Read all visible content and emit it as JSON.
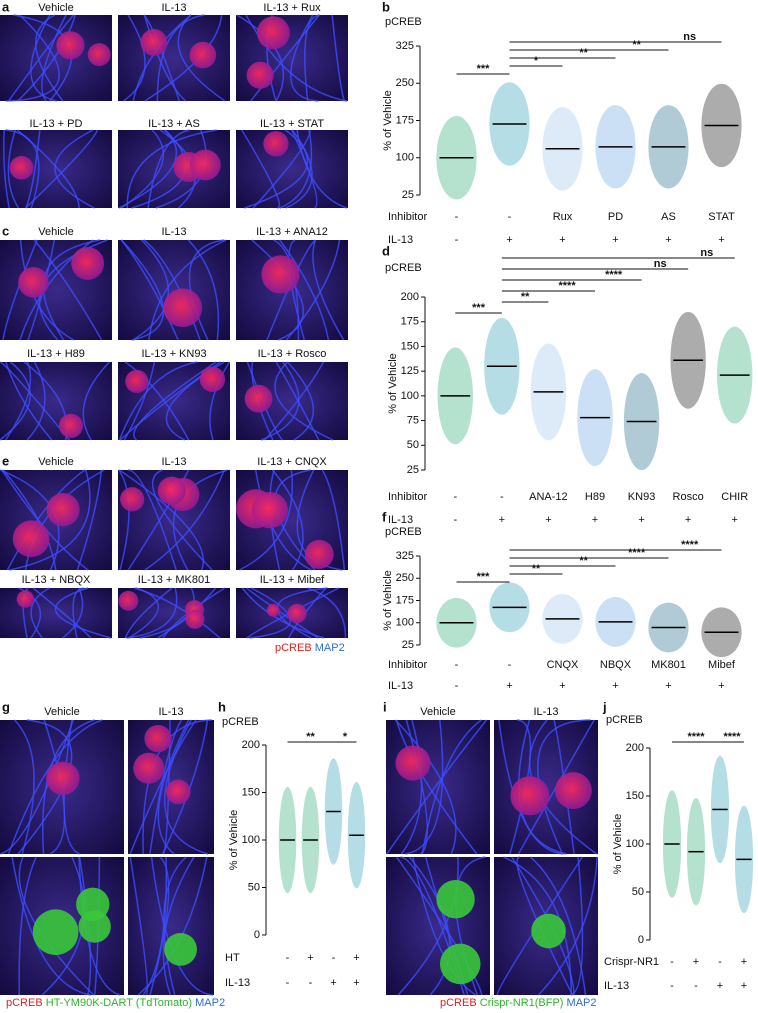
{
  "figure": {
    "panels": [
      {
        "label": "a",
        "images": [
          "Vehicle",
          "IL-13",
          "IL-13 + Rux",
          "IL-13 + PD",
          "IL-13 + AS",
          "IL-13 + STAT"
        ]
      },
      {
        "label": "c",
        "images": [
          "Vehicle",
          "IL-13",
          "IL-13 + ANA12",
          "IL-13 + H89",
          "IL-13 + KN93",
          "IL-13 + Rosco"
        ]
      },
      {
        "label": "e",
        "images": [
          "Vehicle",
          "IL-13",
          "IL-13 + CNQX",
          "IL-13 + NBQX",
          "IL-13 + MK801",
          "IL-13 + Mibef"
        ],
        "stain_legend": [
          "pCREB",
          "MAP2"
        ],
        "stain_colors": [
          "#e0201c",
          "#2a6fd0"
        ]
      },
      {
        "label": "g",
        "images": [
          "Vehicle",
          "IL-13"
        ],
        "stain_legend": [
          "pCREB",
          "HT-YM90K-DART (TdTomato)",
          "MAP2"
        ],
        "stain_colors": [
          "#e0201c",
          "#2bb52b",
          "#2a6fd0"
        ]
      },
      {
        "label": "i",
        "images": [
          "Vehicle",
          "IL-13"
        ],
        "stain_legend": [
          "pCREB",
          "Crispr-NR1(BFP)",
          "MAP2"
        ],
        "stain_colors": [
          "#e0201c",
          "#2bb52b",
          "#2a6fd0"
        ]
      }
    ]
  },
  "chart_data": [
    {
      "type": "strip",
      "label": "b",
      "title": "pCREB",
      "y_label": "% of Vehicle",
      "ylim": [
        25,
        325
      ],
      "yticks": [
        25,
        100,
        175,
        250,
        325
      ],
      "values": [
        100,
        168,
        118,
        122,
        122,
        165
      ],
      "colors": [
        "#2aa876",
        "#2a9fb5",
        "#9ec5ee",
        "#6aa6e0",
        "#1f6a8a",
        "#111111"
      ],
      "rows": [
        {
          "name": "Inhibitor",
          "labels": [
            "-",
            "-",
            "Rux",
            "PD",
            "AS",
            "STAT"
          ]
        },
        {
          "name": "IL-13",
          "labels": [
            "-",
            "+",
            "+",
            "+",
            "+",
            "+"
          ]
        }
      ],
      "significance": [
        {
          "groups": [
            0,
            1
          ],
          "label": "***"
        },
        {
          "groups": [
            1,
            2
          ],
          "label": "*"
        },
        {
          "groups": [
            1,
            3
          ],
          "label": "**"
        },
        {
          "groups": [
            1,
            4
          ],
          "label": "**"
        },
        {
          "groups": [
            1,
            5
          ],
          "label": "ns"
        }
      ]
    },
    {
      "type": "strip",
      "label": "d",
      "title": "pCREB",
      "y_label": "% of Vehicle",
      "ylim": [
        25,
        200
      ],
      "yticks": [
        25,
        50,
        75,
        100,
        125,
        150,
        175,
        200
      ],
      "values": [
        100,
        130,
        104,
        78,
        74,
        136,
        121
      ],
      "colors": [
        "#2aa876",
        "#2a9fb5",
        "#9ec5ee",
        "#6aa6e0",
        "#1f6a8a",
        "#111111",
        "#2aa876"
      ],
      "rows": [
        {
          "name": "Inhibitor",
          "labels": [
            "-",
            "-",
            "ANA-12",
            "H89",
            "KN93",
            "Rosco",
            "CHIR"
          ]
        },
        {
          "name": "IL-13",
          "labels": [
            "-",
            "+",
            "+",
            "+",
            "+",
            "+",
            "+"
          ]
        }
      ],
      "significance": [
        {
          "groups": [
            0,
            1
          ],
          "label": "***"
        },
        {
          "groups": [
            1,
            2
          ],
          "label": "**"
        },
        {
          "groups": [
            1,
            3
          ],
          "label": "****"
        },
        {
          "groups": [
            1,
            4
          ],
          "label": "****"
        },
        {
          "groups": [
            1,
            5
          ],
          "label": "ns"
        },
        {
          "groups": [
            1,
            6
          ],
          "label": "ns"
        }
      ]
    },
    {
      "type": "strip",
      "label": "f",
      "title": "pCREB",
      "y_label": "% of Vehicle",
      "ylim": [
        25,
        325
      ],
      "yticks": [
        25,
        100,
        175,
        250,
        325
      ],
      "values": [
        100,
        152,
        113,
        103,
        84,
        68
      ],
      "colors": [
        "#2aa876",
        "#2a9fb5",
        "#9ec5ee",
        "#6aa6e0",
        "#1f6a8a",
        "#111111"
      ],
      "rows": [
        {
          "name": "Inhibitor",
          "labels": [
            "-",
            "-",
            "CNQX",
            "NBQX",
            "MK801",
            "Mibef"
          ]
        },
        {
          "name": "IL-13",
          "labels": [
            "-",
            "+",
            "+",
            "+",
            "+",
            "+"
          ]
        }
      ],
      "significance": [
        {
          "groups": [
            0,
            1
          ],
          "label": "***"
        },
        {
          "groups": [
            1,
            2
          ],
          "label": "**"
        },
        {
          "groups": [
            1,
            3
          ],
          "label": "**"
        },
        {
          "groups": [
            1,
            4
          ],
          "label": "****"
        },
        {
          "groups": [
            1,
            5
          ],
          "label": "****"
        }
      ]
    },
    {
      "type": "strip",
      "label": "h",
      "title": "pCREB",
      "y_label": "% of Vehicle",
      "ylim": [
        0,
        200
      ],
      "yticks": [
        0,
        50,
        100,
        150,
        200
      ],
      "values": [
        100,
        100,
        130,
        105
      ],
      "colors": [
        "#2aa876",
        "#2aa876",
        "#2a9fb5",
        "#2a9fb5"
      ],
      "rows": [
        {
          "name": "HT",
          "labels": [
            "-",
            "+",
            "-",
            "+"
          ]
        },
        {
          "name": "IL-13",
          "labels": [
            "-",
            "-",
            "+",
            "+"
          ]
        }
      ],
      "significance": [
        {
          "groups": [
            0,
            2
          ],
          "label": "**"
        },
        {
          "groups": [
            2,
            3
          ],
          "label": "*"
        }
      ]
    },
    {
      "type": "strip",
      "label": "j",
      "title": "pCREB",
      "y_label": "% of Vehicle",
      "ylim": [
        0,
        200
      ],
      "yticks": [
        0,
        50,
        100,
        150,
        200
      ],
      "values": [
        100,
        92,
        136,
        84
      ],
      "colors": [
        "#2aa876",
        "#2aa876",
        "#2a9fb5",
        "#2a9fb5"
      ],
      "rows": [
        {
          "name": "Crispr-NR1",
          "labels": [
            "-",
            "+",
            "-",
            "+"
          ]
        },
        {
          "name": "IL-13",
          "labels": [
            "-",
            "-",
            "+",
            "+"
          ]
        }
      ],
      "significance": [
        {
          "groups": [
            0,
            2
          ],
          "label": "****"
        },
        {
          "groups": [
            2,
            3
          ],
          "label": "****"
        }
      ]
    }
  ]
}
